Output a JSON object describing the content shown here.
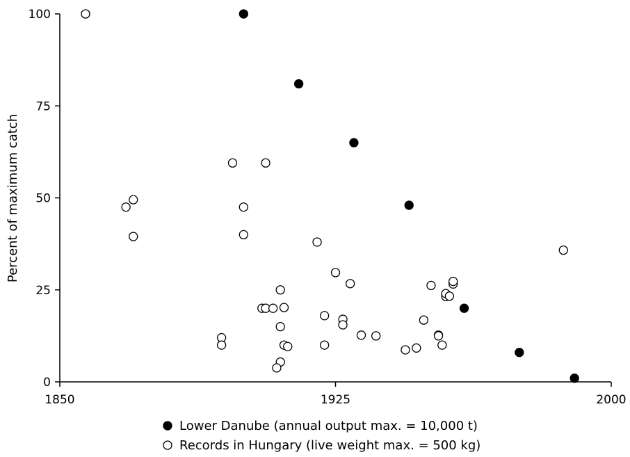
{
  "chart_data": {
    "type": "scatter",
    "title": "",
    "xlabel": "",
    "ylabel": "Percent of maximum catch",
    "xlim": [
      1850,
      2000
    ],
    "ylim": [
      0,
      100
    ],
    "xticks": [
      1850,
      1925,
      2000
    ],
    "yticks": [
      0,
      25,
      50,
      75,
      100
    ],
    "grid": false,
    "legend_position": "bottom",
    "series": [
      {
        "name": "Lower Danube (annual output max. = 10,000 t)",
        "marker": "filled-circle",
        "color": "#000000",
        "points": [
          [
            1900,
            100
          ],
          [
            1915,
            81
          ],
          [
            1930,
            65
          ],
          [
            1945,
            48
          ],
          [
            1960,
            20
          ],
          [
            1975,
            8
          ],
          [
            1990,
            1
          ]
        ]
      },
      {
        "name": "Records in Hungary (live weight max. = 500 kg)",
        "marker": "open-circle",
        "color": "#000000",
        "points": [
          [
            1857,
            100
          ],
          [
            1868,
            47.5
          ],
          [
            1870,
            49.5
          ],
          [
            1870,
            39.5
          ],
          [
            1897,
            59.5
          ],
          [
            1900,
            47.5
          ],
          [
            1900,
            40
          ],
          [
            1894,
            12
          ],
          [
            1894,
            10
          ],
          [
            1906,
            59.5
          ],
          [
            1905,
            20
          ],
          [
            1906,
            20
          ],
          [
            1908,
            20
          ],
          [
            1910,
            25
          ],
          [
            1911,
            20.2
          ],
          [
            1910,
            15
          ],
          [
            1911,
            10
          ],
          [
            1912,
            9.6
          ],
          [
            1910,
            5.4
          ],
          [
            1909,
            3.8
          ],
          [
            1920,
            38
          ],
          [
            1922,
            18
          ],
          [
            1922,
            10
          ],
          [
            1925,
            29.7
          ],
          [
            1927,
            17
          ],
          [
            1927,
            15.5
          ],
          [
            1929,
            26.7
          ],
          [
            1932,
            12.7
          ],
          [
            1936,
            12.5
          ],
          [
            1944,
            8.7
          ],
          [
            1947,
            9.2
          ],
          [
            1949,
            16.8
          ],
          [
            1951,
            26.2
          ],
          [
            1953,
            12.7
          ],
          [
            1953,
            12.5
          ],
          [
            1954,
            10
          ],
          [
            1955,
            23.2
          ],
          [
            1955,
            24
          ],
          [
            1956,
            23.3
          ],
          [
            1957,
            26.6
          ],
          [
            1957,
            27.3
          ],
          [
            1987,
            35.8
          ]
        ]
      }
    ]
  }
}
